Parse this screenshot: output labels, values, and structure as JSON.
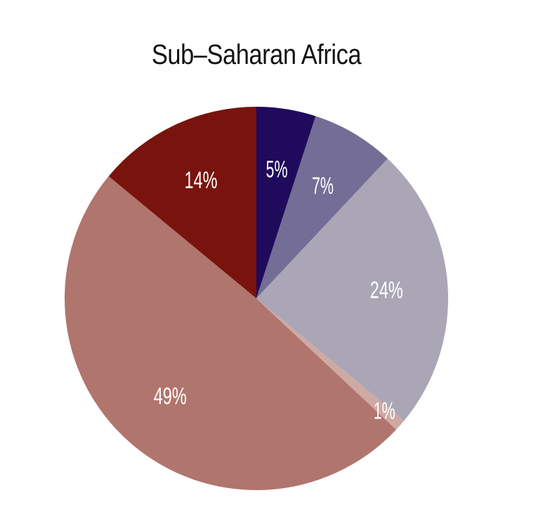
{
  "chart_data": {
    "type": "pie",
    "title": "Sub–Saharan Africa",
    "slices": [
      {
        "label": "5%",
        "value": 5,
        "color": "#1f0a5c"
      },
      {
        "label": "7%",
        "value": 7,
        "color": "#746d95"
      },
      {
        "label": "24%",
        "value": 24,
        "color": "#aaa6b6"
      },
      {
        "label": "1%",
        "value": 1,
        "color": "#cfa9a4"
      },
      {
        "label": "49%",
        "value": 49,
        "color": "#b0756d"
      },
      {
        "label": "14%",
        "value": 14,
        "color": "#79130d"
      }
    ],
    "start_angle": "12 o'clock",
    "direction": "clockwise",
    "legend": "none"
  }
}
